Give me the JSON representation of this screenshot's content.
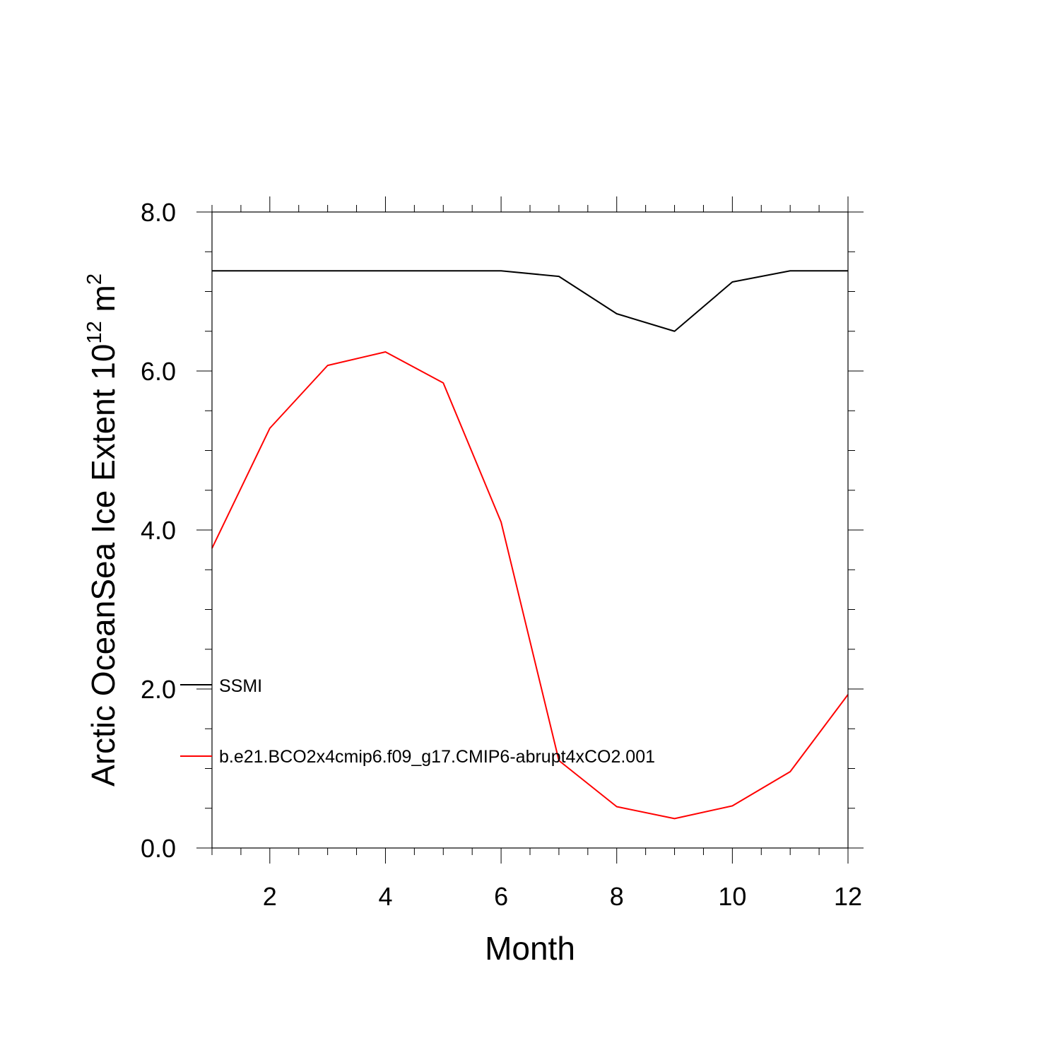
{
  "chart_data": {
    "type": "line",
    "xlabel": "Month",
    "ylabel": {
      "base": "Arctic OceanSea Ice Extent 10",
      "exp1": "12",
      "unit": " m",
      "exp2": "2"
    },
    "xlim": [
      1,
      12
    ],
    "ylim": [
      0,
      8
    ],
    "x_ticks": [
      2,
      4,
      6,
      8,
      10,
      12
    ],
    "y_ticks": [
      0,
      2,
      4,
      6,
      8
    ],
    "y_tick_labels": [
      "0.0",
      "2.0",
      "4.0",
      "6.0",
      "8.0"
    ],
    "x": [
      1,
      2,
      3,
      4,
      5,
      6,
      7,
      8,
      9,
      10,
      11,
      12
    ],
    "series": [
      {
        "name": "SSMI",
        "color": "#000000",
        "values": [
          7.26,
          7.26,
          7.26,
          7.26,
          7.26,
          7.26,
          7.19,
          6.72,
          6.5,
          7.12,
          7.26,
          7.26
        ]
      },
      {
        "name": "b.e21.BCO2x4cmip6.f09_g17.CMIP6-abrupt4xCO2.001",
        "color": "#ff0000",
        "values": [
          3.77,
          5.28,
          6.07,
          6.24,
          5.85,
          4.1,
          1.1,
          0.52,
          0.37,
          0.53,
          0.96,
          1.93
        ]
      }
    ],
    "grid": false,
    "legend_position": "inside-left"
  }
}
